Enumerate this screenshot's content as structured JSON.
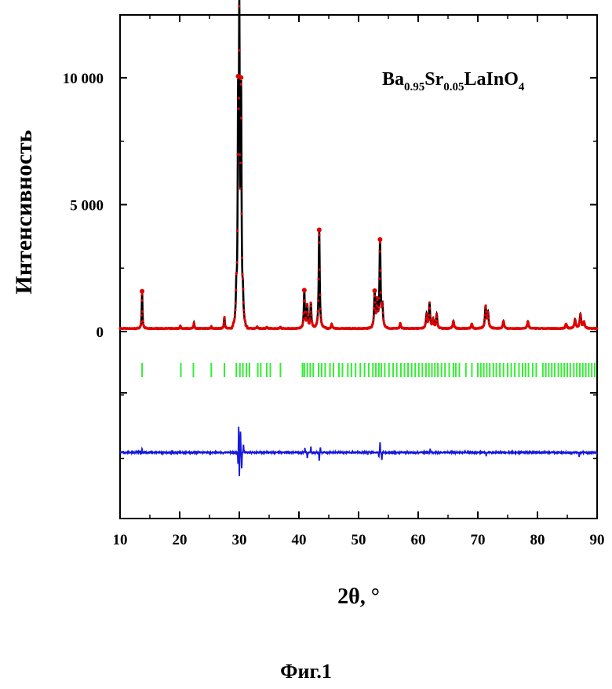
{
  "chart_data": {
    "type": "line",
    "xlabel": "2θ, °",
    "ylabel": "Интенсивность",
    "xlim": [
      10,
      90
    ],
    "xticks": [
      "10",
      "20",
      "30",
      "40",
      "50",
      "60",
      "70",
      "80",
      "90"
    ],
    "yticks": [
      "0",
      "5 000",
      "10 000"
    ],
    "annotation": {
      "parts": [
        {
          "text": "Ba",
          "sub": false
        },
        {
          "text": "0.95",
          "sub": true
        },
        {
          "text": "Sr",
          "sub": false
        },
        {
          "text": "0.05",
          "sub": true
        },
        {
          "text": "LaInO",
          "sub": false
        },
        {
          "text": "4",
          "sub": true
        }
      ]
    },
    "grid": false,
    "legend": "none",
    "baseline_intensity": 120,
    "peaks": [
      {
        "x": 13.7,
        "y": 1450
      },
      {
        "x": 20.1,
        "y": 100
      },
      {
        "x": 22.4,
        "y": 230
      },
      {
        "x": 25.3,
        "y": 80
      },
      {
        "x": 27.5,
        "y": 450
      },
      {
        "x": 29.5,
        "y": 1100
      },
      {
        "x": 29.8,
        "y": 7700
      },
      {
        "x": 30.0,
        "y": 11000
      },
      {
        "x": 30.3,
        "y": 8600
      },
      {
        "x": 30.6,
        "y": 900
      },
      {
        "x": 33.0,
        "y": 80
      },
      {
        "x": 34.6,
        "y": 60
      },
      {
        "x": 36.9,
        "y": 60
      },
      {
        "x": 40.9,
        "y": 1450
      },
      {
        "x": 41.4,
        "y": 900
      },
      {
        "x": 42.0,
        "y": 1000
      },
      {
        "x": 43.4,
        "y": 3850
      },
      {
        "x": 45.5,
        "y": 180
      },
      {
        "x": 52.7,
        "y": 1350
      },
      {
        "x": 53.1,
        "y": 1000
      },
      {
        "x": 53.6,
        "y": 3350
      },
      {
        "x": 54.0,
        "y": 800
      },
      {
        "x": 57.0,
        "y": 200
      },
      {
        "x": 61.4,
        "y": 550
      },
      {
        "x": 61.9,
        "y": 950
      },
      {
        "x": 62.5,
        "y": 350
      },
      {
        "x": 63.1,
        "y": 550
      },
      {
        "x": 65.9,
        "y": 300
      },
      {
        "x": 69.0,
        "y": 180
      },
      {
        "x": 71.3,
        "y": 850
      },
      {
        "x": 71.7,
        "y": 600
      },
      {
        "x": 74.3,
        "y": 300
      },
      {
        "x": 78.4,
        "y": 280
      },
      {
        "x": 84.8,
        "y": 180
      },
      {
        "x": 86.3,
        "y": 350
      },
      {
        "x": 87.2,
        "y": 550
      },
      {
        "x": 87.8,
        "y": 250
      }
    ],
    "reflection_positions": [
      13.7,
      20.2,
      22.3,
      25.3,
      27.5,
      29.5,
      30.1,
      30.6,
      31.2,
      31.7,
      33.1,
      33.6,
      34.6,
      35.2,
      36.9,
      40.6,
      40.9,
      41.4,
      41.9,
      42.4,
      43.3,
      43.8,
      44.4,
      45.2,
      45.8,
      46.7,
      47.3,
      48.2,
      48.8,
      49.5,
      50.3,
      51.0,
      51.7,
      52.4,
      52.9,
      53.4,
      53.8,
      54.4,
      55.1,
      55.8,
      56.4,
      57.1,
      57.7,
      58.3,
      58.9,
      59.5,
      60.1,
      60.7,
      61.3,
      61.8,
      62.3,
      62.8,
      63.3,
      63.9,
      64.5,
      65.2,
      65.9,
      66.3,
      66.9,
      68.0,
      69.0,
      70.0,
      70.5,
      71.0,
      71.5,
      72.0,
      72.6,
      73.1,
      73.7,
      74.3,
      75.0,
      75.6,
      76.2,
      76.9,
      77.5,
      78.0,
      78.5,
      79.2,
      79.8,
      80.9,
      81.4,
      81.9,
      82.4,
      82.9,
      83.5,
      84.0,
      84.5,
      85.0,
      85.5,
      86.1,
      86.6,
      87.1,
      87.6,
      88.1,
      88.6,
      89.1,
      89.6
    ],
    "difference_features": [
      {
        "x": 13.7,
        "y": 150
      },
      {
        "x": 29.8,
        "y": -500
      },
      {
        "x": 29.9,
        "y": 1100
      },
      {
        "x": 30.0,
        "y": -950
      },
      {
        "x": 30.2,
        "y": 800
      },
      {
        "x": 30.4,
        "y": -600
      },
      {
        "x": 30.7,
        "y": 300
      },
      {
        "x": 41.0,
        "y": 150
      },
      {
        "x": 41.4,
        "y": -200
      },
      {
        "x": 42.0,
        "y": 200
      },
      {
        "x": 43.4,
        "y": -300
      },
      {
        "x": 43.6,
        "y": 200
      },
      {
        "x": 53.4,
        "y": -150
      },
      {
        "x": 53.6,
        "y": 400
      },
      {
        "x": 53.9,
        "y": -300
      },
      {
        "x": 62.0,
        "y": 120
      },
      {
        "x": 71.4,
        "y": -100
      },
      {
        "x": 87.0,
        "y": -150
      }
    ],
    "colors": {
      "observed": "#e00000",
      "calculated": "#000000",
      "reflections": "#33ee33",
      "difference": "#1a1adc"
    }
  },
  "caption": "Фиг.1"
}
